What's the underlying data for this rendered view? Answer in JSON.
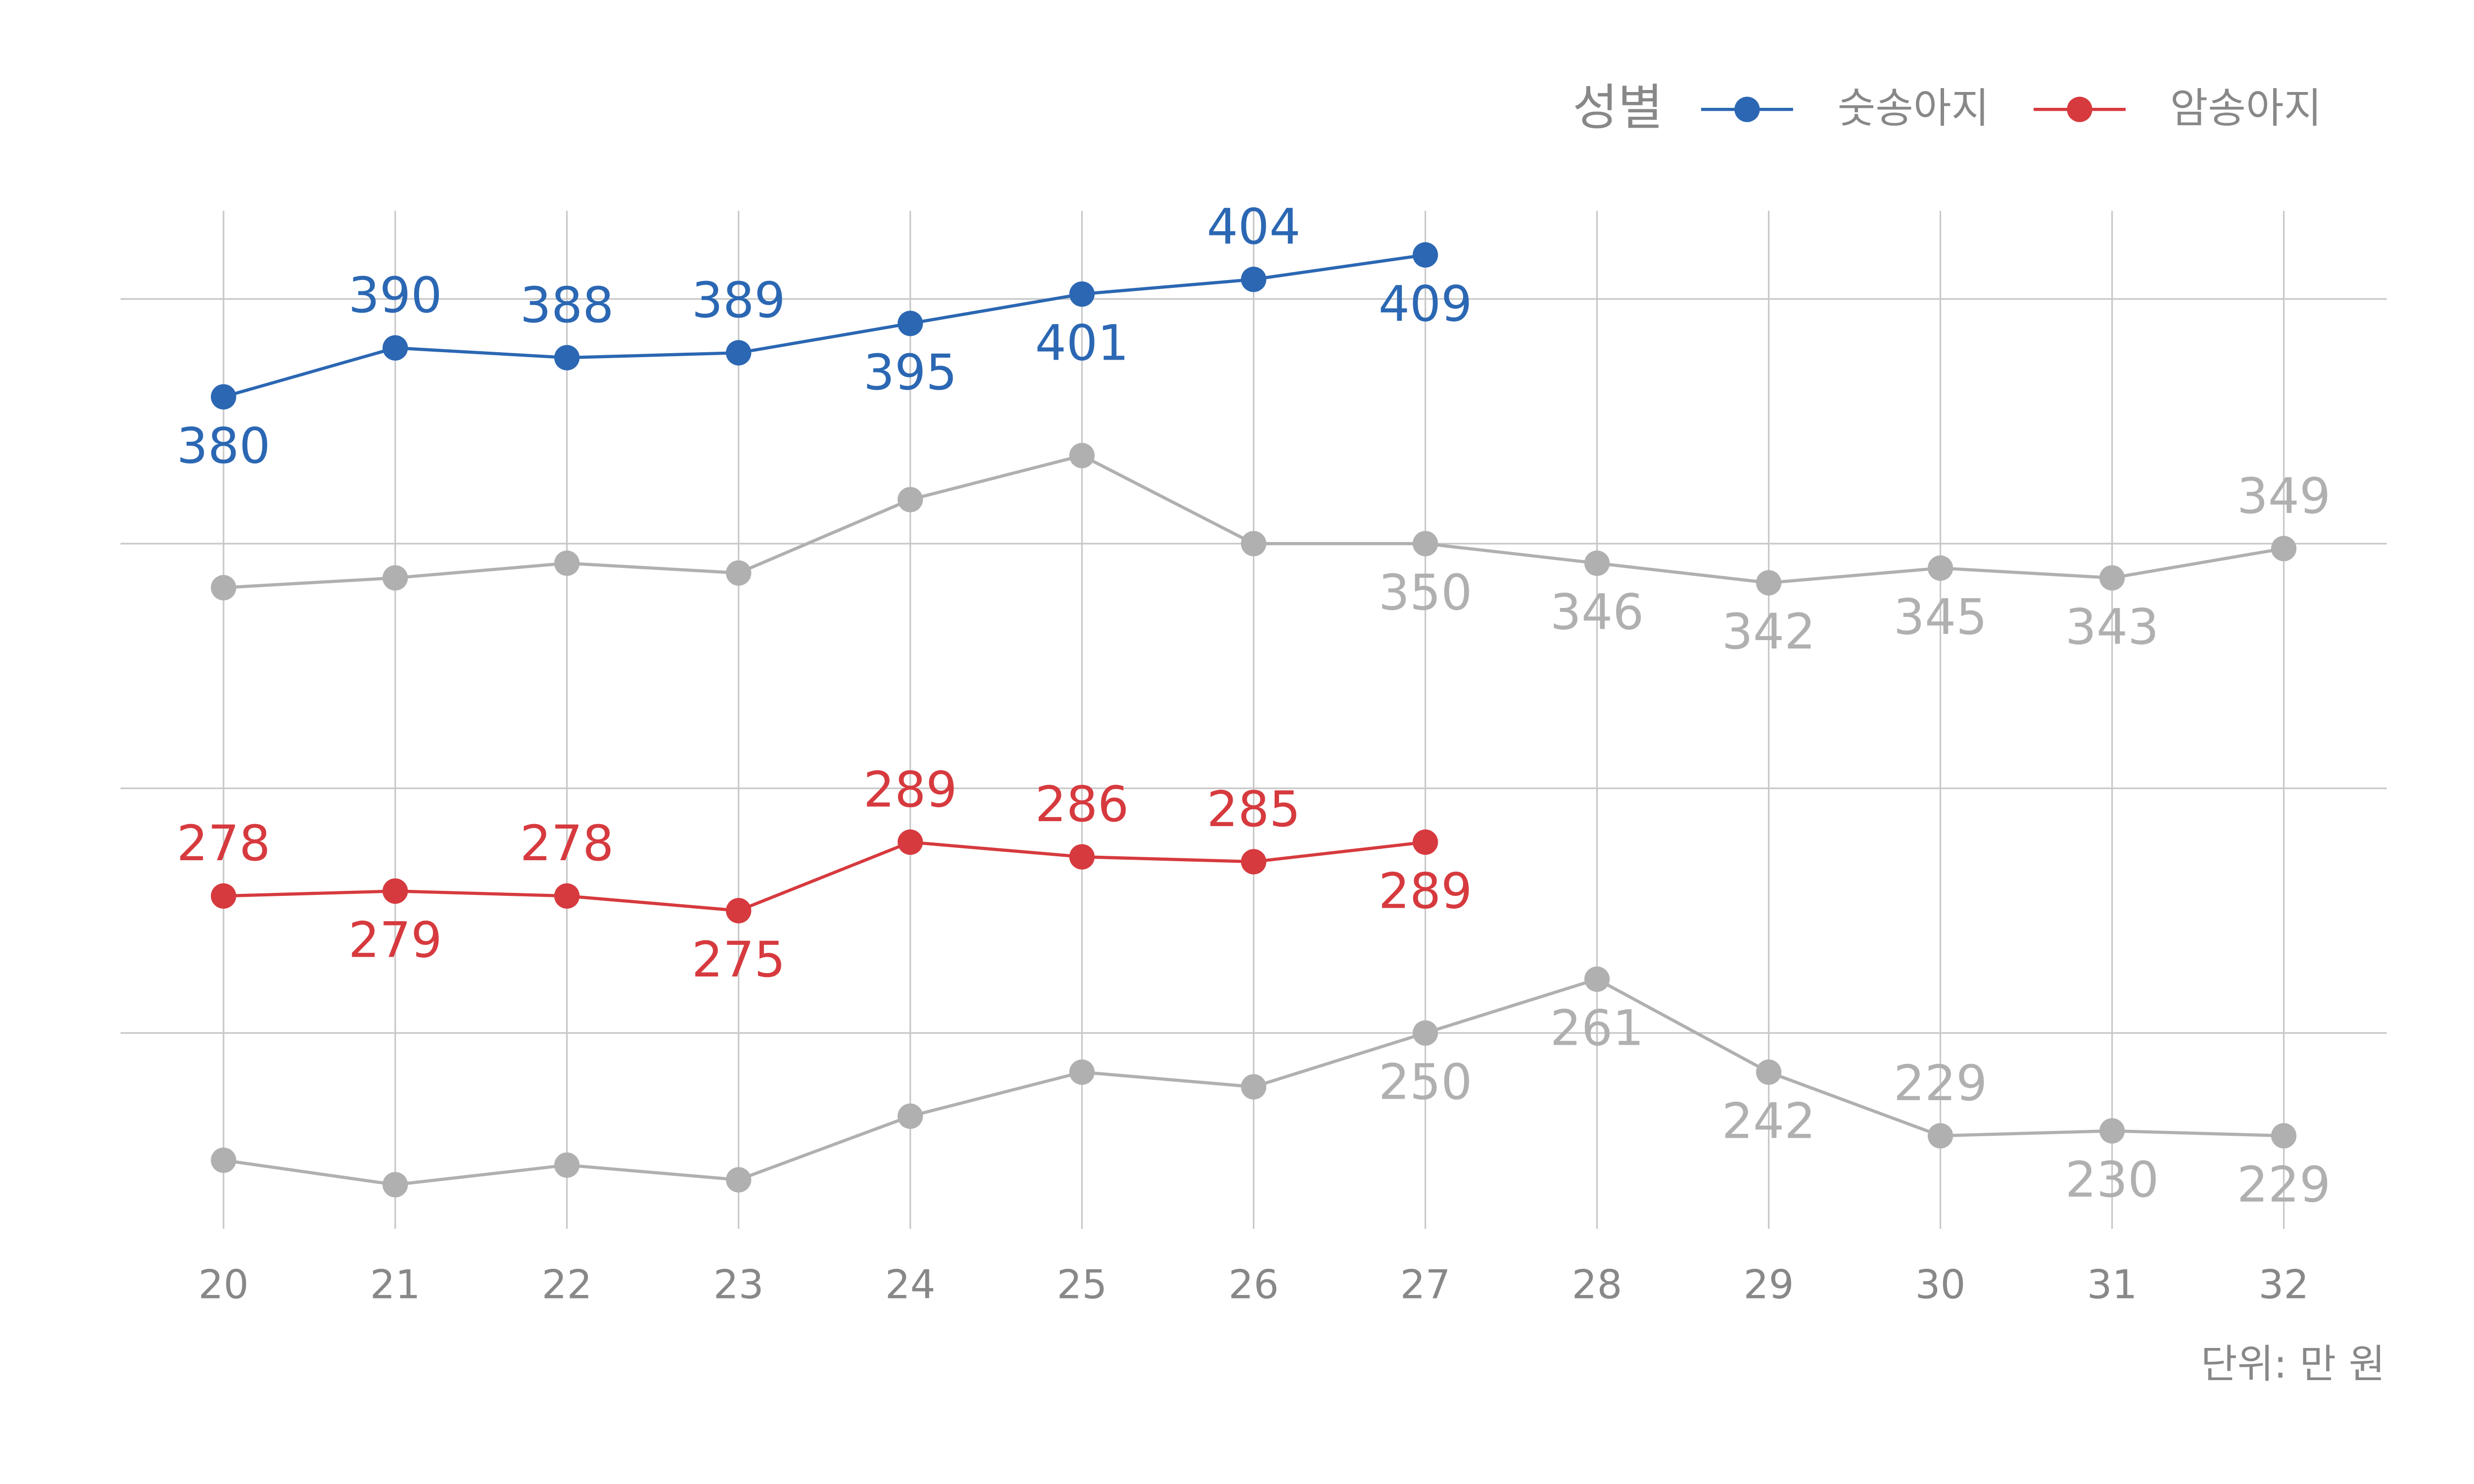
{
  "chart_data": {
    "type": "line",
    "legend_title": "성별",
    "caption": "단위: 만 원",
    "x": [
      20,
      21,
      22,
      23,
      24,
      25,
      26,
      27,
      28,
      29,
      30,
      31,
      32
    ],
    "xlim": [
      19.4,
      32.6
    ],
    "xticks": [
      20,
      21,
      22,
      23,
      24,
      25,
      26,
      27,
      28,
      29,
      30,
      31,
      32
    ],
    "ylim": [
      210,
      418
    ],
    "yticks": [
      250,
      300,
      350,
      400
    ],
    "grid": true,
    "legend": "top-right",
    "series": [
      {
        "color": "#b0b0b0",
        "values": [
          341,
          343,
          346,
          344,
          359,
          368,
          350,
          350,
          346,
          342,
          345,
          343,
          349
        ],
        "value_labels": [
          null,
          null,
          null,
          null,
          null,
          null,
          null,
          "350",
          "346",
          "342",
          "345",
          "343",
          "349"
        ],
        "label_positions": [
          "below",
          "below",
          "below",
          "below",
          "below",
          "below",
          "below",
          "below",
          "below",
          "below",
          "below",
          "below",
          "above"
        ]
      },
      {
        "color": "#b0b0b0",
        "values": [
          224,
          219,
          223,
          220,
          233,
          242,
          239,
          250,
          261,
          242,
          229,
          230,
          229
        ],
        "value_labels": [
          null,
          null,
          null,
          null,
          null,
          null,
          null,
          "250",
          "261",
          "242",
          "229",
          "230",
          "229"
        ],
        "label_positions": [
          "below",
          "below",
          "below",
          "below",
          "below",
          "below",
          "below",
          "below",
          "below",
          "below",
          "above",
          "below",
          "below"
        ]
      },
      {
        "name": "숫송아지",
        "color": "#2b67b3",
        "values": [
          380,
          390,
          388,
          389,
          395,
          401,
          404,
          409,
          null,
          null,
          null,
          null,
          null
        ],
        "value_labels": [
          "380",
          "390",
          "388",
          "389",
          "395",
          "401",
          "404",
          "409",
          null,
          null,
          null,
          null,
          null
        ],
        "label_positions": [
          "below",
          "above",
          "above",
          "above",
          "below",
          "below",
          "above",
          "below",
          null,
          null,
          null,
          null,
          null
        ]
      },
      {
        "name": "암송아지",
        "color": "#d63a3e",
        "values": [
          278,
          279,
          278,
          275,
          289,
          286,
          285,
          289,
          null,
          null,
          null,
          null,
          null
        ],
        "value_labels": [
          "278",
          "279",
          "278",
          "275",
          "289",
          "286",
          "285",
          "289",
          null,
          null,
          null,
          null,
          null
        ],
        "label_positions": [
          "above",
          "below",
          "above",
          "below",
          "above",
          "above",
          "above",
          "below",
          null,
          null,
          null,
          null,
          null
        ]
      }
    ]
  }
}
